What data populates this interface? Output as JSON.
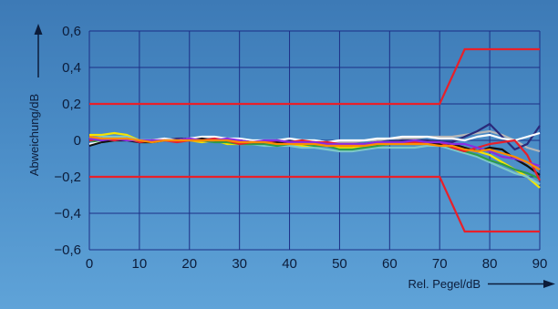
{
  "chart_data": {
    "type": "line",
    "title": "",
    "xlabel": "Rel. Pegel/dB",
    "ylabel": "Abweichung/dB",
    "xlim": [
      0,
      90
    ],
    "ylim": [
      -0.6,
      0.6
    ],
    "xticks": [
      "0",
      "10",
      "20",
      "30",
      "40",
      "50",
      "60",
      "70",
      "80",
      "90"
    ],
    "yticks": [
      "−0,6",
      "−0,4",
      "−0,2",
      "0",
      "0,2",
      "0,4",
      "0,6"
    ],
    "grid": true,
    "x": [
      0,
      2.5,
      5,
      7.5,
      10,
      12.5,
      15,
      17.5,
      20,
      22.5,
      25,
      27.5,
      30,
      32.5,
      35,
      37.5,
      40,
      42.5,
      45,
      47.5,
      50,
      52.5,
      55,
      57.5,
      60,
      62.5,
      65,
      67.5,
      70,
      72.5,
      75,
      77.5,
      80,
      82.5,
      85,
      87.5,
      90
    ],
    "limits": [
      {
        "x": [
          0,
          70,
          75,
          90
        ],
        "y": [
          0.2,
          0.2,
          0.5,
          0.5
        ],
        "color": "#e8202a"
      },
      {
        "x": [
          0,
          70,
          75,
          90
        ],
        "y": [
          -0.2,
          -0.2,
          -0.5,
          -0.5
        ],
        "color": "#e8202a"
      }
    ],
    "series": [
      {
        "color": "#f5e400",
        "values": [
          0.03,
          0.03,
          0.04,
          0.03,
          0.0,
          -0.01,
          0.0,
          0.01,
          0.0,
          -0.01,
          0.0,
          -0.02,
          -0.02,
          -0.02,
          -0.02,
          -0.02,
          -0.02,
          -0.03,
          -0.03,
          -0.03,
          -0.04,
          -0.04,
          -0.04,
          -0.03,
          -0.02,
          -0.02,
          -0.02,
          -0.02,
          -0.02,
          -0.03,
          -0.04,
          -0.06,
          -0.08,
          -0.12,
          -0.16,
          -0.2,
          -0.26
        ]
      },
      {
        "color": "#7ec8c8",
        "values": [
          0.01,
          0.02,
          0.02,
          0.02,
          0.0,
          0.0,
          0.01,
          0.0,
          0.0,
          0.01,
          0.01,
          0.0,
          -0.01,
          -0.02,
          -0.03,
          -0.03,
          -0.03,
          -0.04,
          -0.04,
          -0.05,
          -0.06,
          -0.06,
          -0.05,
          -0.04,
          -0.04,
          -0.04,
          -0.04,
          -0.03,
          -0.03,
          -0.05,
          -0.07,
          -0.09,
          -0.12,
          -0.15,
          -0.18,
          -0.2,
          -0.24
        ]
      },
      {
        "color": "#2e9e47",
        "values": [
          0.0,
          -0.01,
          0.0,
          0.0,
          -0.01,
          -0.01,
          0.0,
          0.0,
          0.0,
          0.0,
          -0.01,
          -0.01,
          -0.02,
          -0.02,
          -0.02,
          -0.03,
          -0.02,
          -0.02,
          -0.03,
          -0.03,
          -0.05,
          -0.05,
          -0.04,
          -0.03,
          -0.02,
          -0.02,
          -0.02,
          -0.01,
          -0.02,
          -0.04,
          -0.06,
          -0.08,
          -0.11,
          -0.13,
          -0.16,
          -0.18,
          -0.21
        ]
      },
      {
        "color": "#b7b7b7",
        "values": [
          0.02,
          0.01,
          0.0,
          0.01,
          0.0,
          0.0,
          0.0,
          0.01,
          0.01,
          0.0,
          0.01,
          0.01,
          0.0,
          0.0,
          -0.01,
          -0.01,
          0.0,
          0.0,
          0.0,
          -0.01,
          -0.01,
          -0.01,
          0.0,
          0.0,
          0.01,
          0.01,
          0.01,
          0.02,
          0.02,
          0.02,
          0.03,
          0.04,
          0.05,
          0.03,
          0.0,
          -0.04,
          -0.06
        ]
      },
      {
        "color": "#2a2a7a",
        "values": [
          0.0,
          0.01,
          0.0,
          0.01,
          -0.01,
          0.0,
          0.0,
          0.01,
          0.01,
          0.0,
          0.01,
          0.01,
          0.0,
          -0.01,
          -0.01,
          0.0,
          0.0,
          -0.01,
          -0.01,
          -0.02,
          -0.02,
          -0.02,
          -0.02,
          -0.01,
          -0.01,
          0.0,
          0.0,
          0.0,
          -0.01,
          -0.01,
          0.02,
          0.05,
          0.09,
          0.02,
          -0.05,
          -0.02,
          0.08
        ]
      },
      {
        "color": "#ffffff",
        "values": [
          -0.02,
          -0.01,
          0.01,
          0.0,
          0.0,
          0.0,
          0.01,
          0.0,
          0.01,
          0.02,
          0.02,
          0.01,
          0.01,
          0.0,
          0.0,
          0.0,
          0.01,
          0.0,
          0.0,
          -0.01,
          0.0,
          0.0,
          0.0,
          0.01,
          0.01,
          0.02,
          0.02,
          0.02,
          0.01,
          0.01,
          0.0,
          0.02,
          0.03,
          0.01,
          0.0,
          0.02,
          0.04
        ]
      },
      {
        "color": "#111111",
        "values": [
          -0.03,
          -0.01,
          0.0,
          0.0,
          -0.01,
          -0.01,
          0.0,
          0.0,
          0.0,
          0.01,
          0.0,
          0.0,
          0.0,
          -0.01,
          -0.01,
          -0.01,
          -0.01,
          -0.01,
          -0.01,
          -0.02,
          -0.03,
          -0.03,
          -0.02,
          -0.02,
          -0.01,
          -0.01,
          -0.01,
          -0.01,
          -0.02,
          -0.02,
          -0.04,
          -0.06,
          -0.04,
          -0.05,
          -0.1,
          -0.14,
          -0.19
        ]
      },
      {
        "color": "#e8202a",
        "values": [
          0.0,
          0.01,
          0.0,
          0.01,
          -0.01,
          0.0,
          0.0,
          -0.01,
          0.0,
          0.0,
          0.01,
          0.0,
          -0.02,
          -0.01,
          -0.01,
          0.0,
          -0.01,
          0.0,
          -0.01,
          -0.01,
          -0.02,
          -0.02,
          -0.02,
          -0.01,
          -0.01,
          -0.01,
          -0.01,
          -0.01,
          -0.01,
          -0.04,
          -0.06,
          -0.04,
          -0.02,
          -0.01,
          0.0,
          -0.08,
          -0.22
        ]
      },
      {
        "color": "#8a2be2",
        "values": [
          0.01,
          0.0,
          0.01,
          0.0,
          0.0,
          0.0,
          0.0,
          0.0,
          0.01,
          0.0,
          0.0,
          0.01,
          0.0,
          -0.01,
          0.0,
          0.0,
          -0.01,
          -0.01,
          -0.01,
          -0.02,
          -0.02,
          -0.02,
          -0.02,
          -0.01,
          -0.01,
          -0.01,
          0.0,
          -0.01,
          -0.01,
          -0.02,
          -0.02,
          -0.04,
          -0.06,
          -0.09,
          -0.1,
          -0.12,
          -0.14
        ]
      },
      {
        "color": "#ff8c00",
        "values": [
          0.02,
          0.01,
          0.01,
          0.01,
          0.0,
          -0.01,
          0.0,
          0.0,
          0.0,
          0.0,
          0.0,
          0.0,
          -0.01,
          -0.01,
          -0.01,
          -0.02,
          -0.02,
          -0.02,
          -0.02,
          -0.03,
          -0.03,
          -0.03,
          -0.03,
          -0.02,
          -0.02,
          -0.02,
          -0.02,
          -0.02,
          -0.03,
          -0.03,
          -0.05,
          -0.06,
          -0.05,
          -0.07,
          -0.09,
          -0.12,
          -0.16
        ]
      }
    ]
  }
}
